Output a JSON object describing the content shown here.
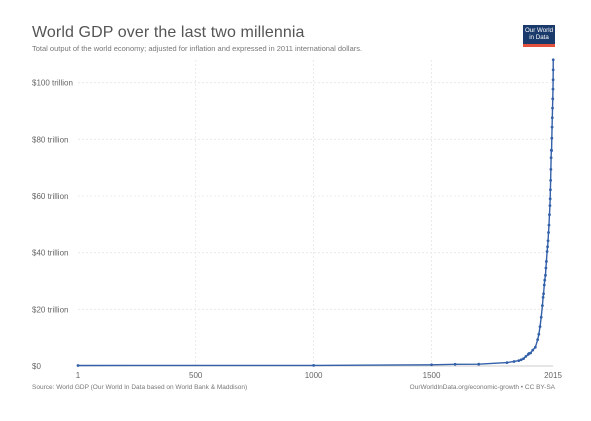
{
  "header": {
    "title": "World GDP over the last two millennia",
    "subtitle": "Total output of the world economy; adjusted for inflation and expressed in 2011 international dollars.",
    "logo_line1": "Our World",
    "logo_line2": "in Data",
    "logo_bg": "#1a3a6b",
    "logo_accent": "#e3513d"
  },
  "footer": {
    "source": "Source: World GDP (Our World In Data based on World Bank & Maddison)",
    "license": "OurWorldInData.org/economic-growth • CC BY-SA"
  },
  "chart_data": {
    "type": "line",
    "title": "World GDP over the last two millennia",
    "subtitle": "Total output of the world economy; adjusted for inflation and expressed in 2011 international dollars.",
    "xlabel": "",
    "ylabel": "",
    "xlim": [
      1,
      2015
    ],
    "ylim": [
      0,
      108
    ],
    "x_ticks": [
      1,
      500,
      1000,
      1500,
      2015
    ],
    "y_ticks": [
      0,
      20,
      40,
      60,
      80,
      100
    ],
    "y_tick_labels": [
      "$0",
      "$20 trillion",
      "$40 trillion",
      "$60 trillion",
      "$80 trillion",
      "$100 trillion"
    ],
    "y_unit": "trillion international-$ (2011)",
    "grid": true,
    "line_color": "#3360a9",
    "series": [
      {
        "name": "World GDP",
        "points": [
          [
            1,
            0.18
          ],
          [
            1000,
            0.21
          ],
          [
            1500,
            0.43
          ],
          [
            1600,
            0.6
          ],
          [
            1700,
            0.64
          ],
          [
            1820,
            1.2
          ],
          [
            1850,
            1.6
          ],
          [
            1870,
            1.9
          ],
          [
            1880,
            2.2
          ],
          [
            1890,
            2.6
          ],
          [
            1900,
            3.4
          ],
          [
            1910,
            4.1
          ],
          [
            1913,
            4.4
          ],
          [
            1920,
            4.6
          ],
          [
            1929,
            5.6
          ],
          [
            1940,
            6.6
          ],
          [
            1950,
            9.3
          ],
          [
            1955,
            11.2
          ],
          [
            1960,
            13.9
          ],
          [
            1965,
            17.2
          ],
          [
            1970,
            21.3
          ],
          [
            1973,
            24.2
          ],
          [
            1975,
            25.5
          ],
          [
            1978,
            28.6
          ],
          [
            1980,
            30.3
          ],
          [
            1983,
            32.0
          ],
          [
            1985,
            34.6
          ],
          [
            1987,
            36.9
          ],
          [
            1990,
            40.4
          ],
          [
            1992,
            42.1
          ],
          [
            1994,
            44.2
          ],
          [
            1996,
            47.1
          ],
          [
            1998,
            49.7
          ],
          [
            2000,
            53.4
          ],
          [
            2002,
            56.6
          ],
          [
            2003,
            59.0
          ],
          [
            2004,
            62.2
          ],
          [
            2005,
            65.5
          ],
          [
            2006,
            69.4
          ],
          [
            2007,
            73.5
          ],
          [
            2008,
            76.2
          ],
          [
            2009,
            76.0
          ],
          [
            2010,
            80.4
          ],
          [
            2011,
            84.3
          ],
          [
            2012,
            87.6
          ],
          [
            2013,
            91.0
          ],
          [
            2014,
            94.3
          ],
          [
            2015,
            97.7
          ],
          [
            2015.5,
            101.0
          ],
          [
            2015.8,
            104.5
          ],
          [
            2016,
            108.1
          ]
        ]
      }
    ]
  }
}
